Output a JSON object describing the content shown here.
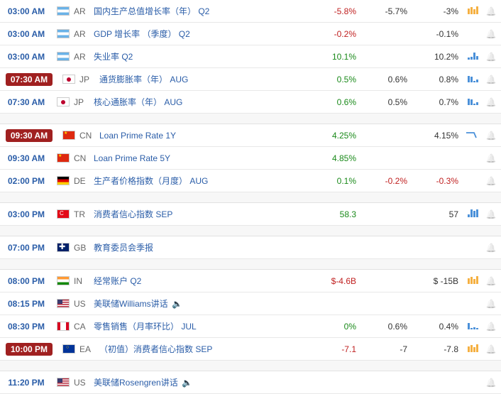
{
  "rows": [
    {
      "type": "data",
      "time": "03:00 AM",
      "badge": false,
      "flag": "ar",
      "cc": "AR",
      "title": "国内生产总值增长率（年） Q2",
      "v1": "-5.8%",
      "v1c": "neg",
      "v2": "-5.7%",
      "v2c": "neu",
      "v3": "-3%",
      "v3c": "neu",
      "chart": "bars-orange"
    },
    {
      "type": "data",
      "time": "03:00 AM",
      "badge": false,
      "flag": "ar",
      "cc": "AR",
      "title": "GDP 增长率 （季度） Q2",
      "v1": "-0.2%",
      "v1c": "neg",
      "v2": "",
      "v2c": "",
      "v3": "-0.1%",
      "v3c": "neu",
      "chart": ""
    },
    {
      "type": "data",
      "time": "03:00 AM",
      "badge": false,
      "flag": "ar",
      "cc": "AR",
      "title": "失业率 Q2",
      "v1": "10.1%",
      "v1c": "pos",
      "v2": "",
      "v2c": "",
      "v3": "10.2%",
      "v3c": "neu",
      "chart": "bars-blue1"
    },
    {
      "type": "data",
      "time": "07:30 AM",
      "badge": true,
      "flag": "jp",
      "cc": "JP",
      "title": "通货膨胀率（年） AUG",
      "v1": "0.5%",
      "v1c": "pos",
      "v2": "0.6%",
      "v2c": "neu",
      "v3": "0.8%",
      "v3c": "neu",
      "chart": "bars-blue2"
    },
    {
      "type": "data",
      "time": "07:30 AM",
      "badge": false,
      "flag": "jp",
      "cc": "JP",
      "title": "核心通胀率（年） AUG",
      "v1": "0.6%",
      "v1c": "pos",
      "v2": "0.5%",
      "v2c": "neu",
      "v3": "0.7%",
      "v3c": "neu",
      "chart": "bars-blue2"
    },
    {
      "type": "spacer"
    },
    {
      "type": "data",
      "time": "09:30 AM",
      "badge": true,
      "flag": "cn",
      "cc": "CN",
      "title": "Loan Prime Rate 1Y",
      "v1": "4.25%",
      "v1c": "pos",
      "v2": "",
      "v2c": "",
      "v3": "4.15%",
      "v3c": "neu",
      "chart": "line-down"
    },
    {
      "type": "data",
      "time": "09:30 AM",
      "badge": false,
      "flag": "cn",
      "cc": "CN",
      "title": "Loan Prime Rate 5Y",
      "v1": "4.85%",
      "v1c": "pos",
      "v2": "",
      "v2c": "",
      "v3": "",
      "v3c": "",
      "chart": ""
    },
    {
      "type": "data",
      "time": "02:00 PM",
      "badge": false,
      "flag": "de",
      "cc": "DE",
      "title": "生产者价格指数（月度） AUG",
      "v1": "0.1%",
      "v1c": "pos",
      "v2": "-0.2%",
      "v2c": "neg",
      "v3": "-0.3%",
      "v3c": "neg",
      "chart": ""
    },
    {
      "type": "spacer"
    },
    {
      "type": "data",
      "time": "03:00 PM",
      "badge": false,
      "flag": "tr",
      "cc": "TR",
      "title": "消费者信心指数 SEP",
      "v1": "58.3",
      "v1c": "pos",
      "v2": "",
      "v2c": "",
      "v3": "57",
      "v3c": "neu",
      "chart": "bars-blue3"
    },
    {
      "type": "spacer"
    },
    {
      "type": "data",
      "time": "07:00 PM",
      "badge": false,
      "flag": "gb",
      "cc": "GB",
      "title": "教育委员会季报",
      "v1": "",
      "v1c": "",
      "v2": "",
      "v2c": "",
      "v3": "",
      "v3c": "",
      "chart": ""
    },
    {
      "type": "spacer"
    },
    {
      "type": "data",
      "time": "08:00 PM",
      "badge": false,
      "flag": "in",
      "cc": "IN",
      "title": "经常账户 Q2",
      "v1": "$-4.6B",
      "v1c": "neg",
      "v2": "",
      "v2c": "",
      "v3": "$ -15B",
      "v3c": "neu",
      "chart": "bars-orange"
    },
    {
      "type": "data",
      "time": "08:15 PM",
      "badge": false,
      "flag": "us",
      "cc": "US",
      "title": "美联储Williams讲话",
      "speaker": true,
      "v1": "",
      "v1c": "",
      "v2": "",
      "v2c": "",
      "v3": "",
      "v3c": "",
      "chart": ""
    },
    {
      "type": "data",
      "time": "08:30 PM",
      "badge": false,
      "flag": "ca",
      "cc": "CA",
      "title": "零售销售（月率环比） JUL",
      "v1": "0%",
      "v1c": "pos",
      "v2": "0.6%",
      "v2c": "neu",
      "v3": "0.4%",
      "v3c": "neu",
      "chart": "bars-blue4"
    },
    {
      "type": "data",
      "time": "10:00 PM",
      "badge": true,
      "flag": "ea",
      "cc": "EA",
      "title": "（初值）消费者信心指数 SEP",
      "v1": "-7.1",
      "v1c": "neg",
      "v2": "-7",
      "v2c": "neu",
      "v3": "-7.8",
      "v3c": "neu",
      "chart": "bars-orange"
    },
    {
      "type": "spacer"
    },
    {
      "type": "data",
      "time": "11:20 PM",
      "badge": false,
      "flag": "us",
      "cc": "US",
      "title": "美联储Rosengren讲话",
      "speaker": true,
      "v1": "",
      "v1c": "",
      "v2": "",
      "v2c": "",
      "v3": "",
      "v3c": "",
      "chart": ""
    }
  ],
  "chart_heights": {
    "bars-orange": [
      8,
      10,
      7,
      11
    ],
    "bars-blue1": [
      3,
      4,
      10,
      5
    ],
    "bars-blue2": [
      9,
      8,
      2,
      4
    ],
    "bars-blue3": [
      4,
      11,
      9,
      11
    ],
    "bars-blue4": [
      9,
      2,
      3,
      2
    ]
  }
}
